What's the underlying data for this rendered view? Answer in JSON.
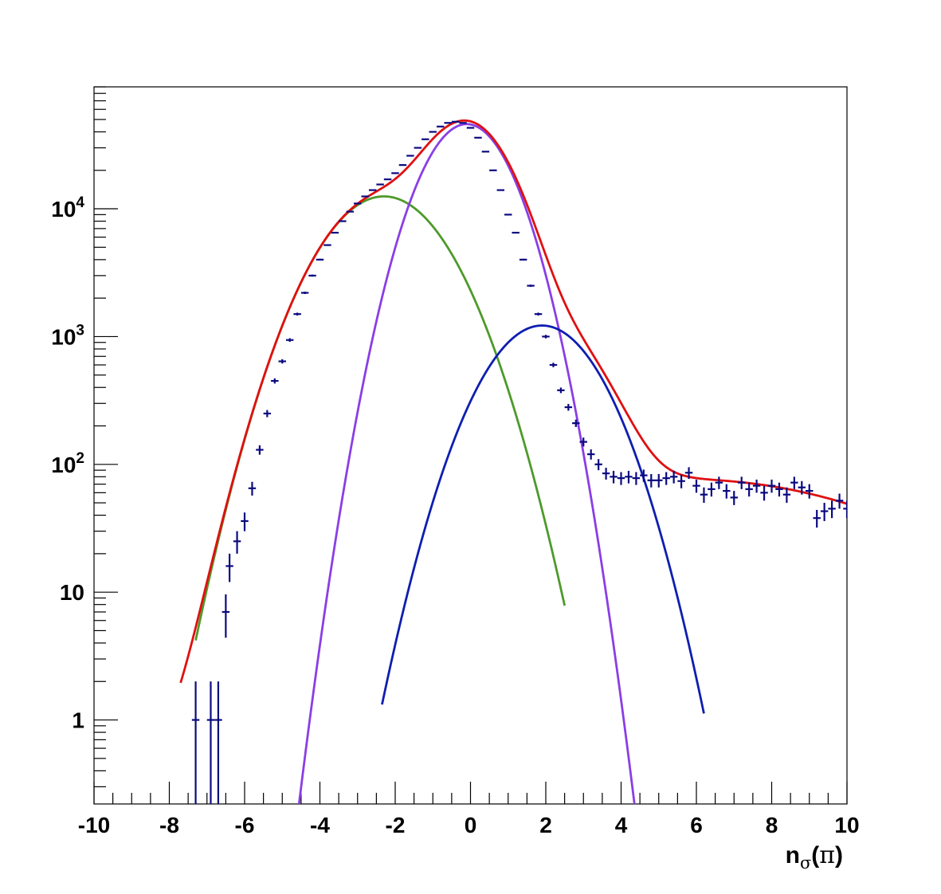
{
  "chart_data": {
    "type": "line",
    "title": "",
    "xlabel": {
      "main": "n",
      "sub": "σ",
      "open": "(",
      "greek": "π",
      "close": ")"
    },
    "ylabel": "",
    "xlim": [
      -10,
      10
    ],
    "ylim": [
      0.22,
      90000
    ],
    "y_scale": "log",
    "grid": false,
    "legend": "none",
    "x_ticks": [
      -10,
      -8,
      -6,
      -4,
      -2,
      0,
      2,
      4,
      6,
      8,
      10
    ],
    "x_tick_labels": [
      "-10",
      "-8",
      "-6",
      "-4",
      "-2",
      "0",
      "2",
      "4",
      "6",
      "8",
      "10"
    ],
    "y_ticks": [
      1,
      10,
      100,
      1000,
      10000
    ],
    "y_tick_labels": [
      {
        "base": "1",
        "exp": ""
      },
      {
        "base": "10",
        "exp": ""
      },
      {
        "base": "10",
        "exp": "2"
      },
      {
        "base": "10",
        "exp": "3"
      },
      {
        "base": "10",
        "exp": "4"
      }
    ],
    "curves": [
      {
        "color": "#4d9a2a",
        "x_range": [
          -7.3,
          2.5
        ],
        "components": [
          {
            "amp": 12500,
            "mu": -2.3,
            "sigma": 1.25
          }
        ]
      },
      {
        "color": "#8a3ee6",
        "x_range": [
          -4.6,
          4.5
        ],
        "components": [
          {
            "amp": 46000,
            "mu": -0.1,
            "sigma": 0.9
          }
        ]
      },
      {
        "color": "#0e1eb0",
        "x_range": [
          -2.35,
          6.2
        ],
        "components": [
          {
            "amp": 1220,
            "mu": 1.9,
            "sigma": 1.15
          }
        ]
      },
      {
        "color": "#e01010",
        "x_range": [
          -7.7,
          10
        ],
        "components": [
          {
            "amp": 12500,
            "mu": -2.3,
            "sigma": 1.25
          },
          {
            "amp": 46000,
            "mu": -0.1,
            "sigma": 0.9
          },
          {
            "amp": 1220,
            "mu": 1.9,
            "sigma": 1.15
          },
          {
            "amp": 76,
            "mu": 5.8,
            "sigma": 4.5
          }
        ]
      }
    ],
    "points": {
      "color": "#0a0a80",
      "bin_half_width": 0.1,
      "x": [
        -7.3,
        -6.9,
        -6.7,
        -6.5,
        -6.4,
        -6.2,
        -6.0,
        -5.8,
        -5.6,
        -5.4,
        -5.2,
        -5.0,
        -4.8,
        -4.6,
        -4.4,
        -4.2,
        -4.0,
        -3.8,
        -3.6,
        -3.4,
        -3.2,
        -3.0,
        -2.8,
        -2.6,
        -2.4,
        -2.2,
        -2.0,
        -1.8,
        -1.6,
        -1.4,
        -1.2,
        -1.0,
        -0.8,
        -0.6,
        -0.4,
        -0.2,
        0.0,
        0.2,
        0.4,
        0.6,
        0.8,
        1.0,
        1.2,
        1.4,
        1.6,
        1.8,
        2.0,
        2.2,
        2.4,
        2.6,
        2.8,
        3.0,
        3.2,
        3.4,
        3.6,
        3.8,
        4.0,
        4.2,
        4.4,
        4.6,
        4.8,
        5.0,
        5.2,
        5.4,
        5.6,
        5.8,
        6.0,
        6.2,
        6.4,
        6.6,
        6.8,
        7.0,
        7.2,
        7.4,
        7.6,
        7.8,
        8.0,
        8.2,
        8.4,
        8.6,
        8.8,
        9.0,
        9.2,
        9.4,
        9.6,
        9.8,
        10.0
      ],
      "y": [
        1,
        1,
        1,
        7,
        16,
        25,
        36,
        65,
        130,
        250,
        450,
        640,
        940,
        1500,
        2200,
        3000,
        4000,
        5200,
        6500,
        8000,
        9500,
        11000,
        12500,
        14000,
        15500,
        17000,
        19000,
        22000,
        26000,
        30000,
        35000,
        40000,
        44000,
        47000,
        48000,
        47000,
        43000,
        36000,
        28000,
        20000,
        14000,
        9000,
        6500,
        4000,
        2500,
        1500,
        1000,
        600,
        380,
        280,
        210,
        150,
        120,
        100,
        85,
        80,
        78,
        80,
        78,
        82,
        75,
        75,
        78,
        80,
        74,
        86,
        68,
        58,
        64,
        72,
        62,
        55,
        72,
        64,
        68,
        60,
        68,
        64,
        58,
        72,
        66,
        62,
        38,
        43,
        45,
        52,
        45
      ],
      "yerr": [
        1,
        1,
        1,
        2.6,
        4,
        5,
        6,
        8,
        11,
        16,
        21,
        25,
        31,
        39,
        47,
        55,
        63,
        72,
        81,
        89,
        97,
        105,
        112,
        118,
        124,
        130,
        138,
        148,
        161,
        173,
        187,
        200,
        210,
        217,
        219,
        217,
        207,
        190,
        167,
        141,
        118,
        95,
        81,
        63,
        50,
        39,
        32,
        24,
        19,
        17,
        14,
        12,
        11,
        10,
        9,
        9,
        9,
        9,
        9,
        9,
        9,
        9,
        9,
        9,
        9,
        9,
        8,
        8,
        8,
        8,
        8,
        7,
        8,
        8,
        8,
        8,
        8,
        8,
        8,
        8,
        8,
        8,
        6,
        7,
        7,
        7,
        7
      ]
    }
  }
}
